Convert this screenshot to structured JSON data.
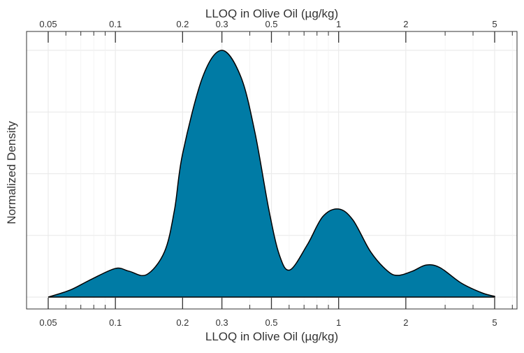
{
  "chart_data": {
    "type": "area",
    "title": "",
    "xlabel": "LLOQ in Olive Oil (µg/kg)",
    "xlabel_top": "LLOQ in Olive Oil (µg/kg)",
    "ylabel": "Normalized Density",
    "xscale": "log10",
    "xlim": [
      0.05,
      5
    ],
    "ylim": [
      0,
      1
    ],
    "x_major_ticks": [
      0.05,
      0.1,
      0.2,
      0.3,
      0.5,
      1,
      2,
      5
    ],
    "x_tick_labels": [
      "0.05",
      "0.1",
      "0.2",
      "0.3",
      "0.5",
      "1",
      "2",
      "5"
    ],
    "x_minor_ticks": [
      0.06,
      0.07,
      0.08,
      0.09,
      0.4,
      0.6,
      0.7,
      0.8,
      0.9,
      3,
      4,
      6
    ],
    "y_gridlines": [
      0,
      0.25,
      0.5,
      0.75,
      1.0
    ],
    "grid": true,
    "fill_color": "#007BA5",
    "line_color": "#000000",
    "series": [
      {
        "name": "density",
        "x": [
          0.05,
          0.0625,
          0.0776,
          0.1,
          0.115,
          0.138,
          0.166,
          0.184,
          0.2,
          0.246,
          0.3,
          0.365,
          0.422,
          0.487,
          0.543,
          0.605,
          0.724,
          0.849,
          1.0,
          1.16,
          1.39,
          1.66,
          1.85,
          2.14,
          2.47,
          2.85,
          3.54,
          4.39,
          5
        ],
        "y": [
          0.0,
          0.028,
          0.071,
          0.116,
          0.105,
          0.091,
          0.184,
          0.354,
          0.581,
          0.892,
          1.0,
          0.892,
          0.666,
          0.354,
          0.17,
          0.11,
          0.212,
          0.326,
          0.357,
          0.312,
          0.184,
          0.105,
          0.088,
          0.105,
          0.13,
          0.119,
          0.057,
          0.017,
          0.003
        ]
      }
    ]
  }
}
